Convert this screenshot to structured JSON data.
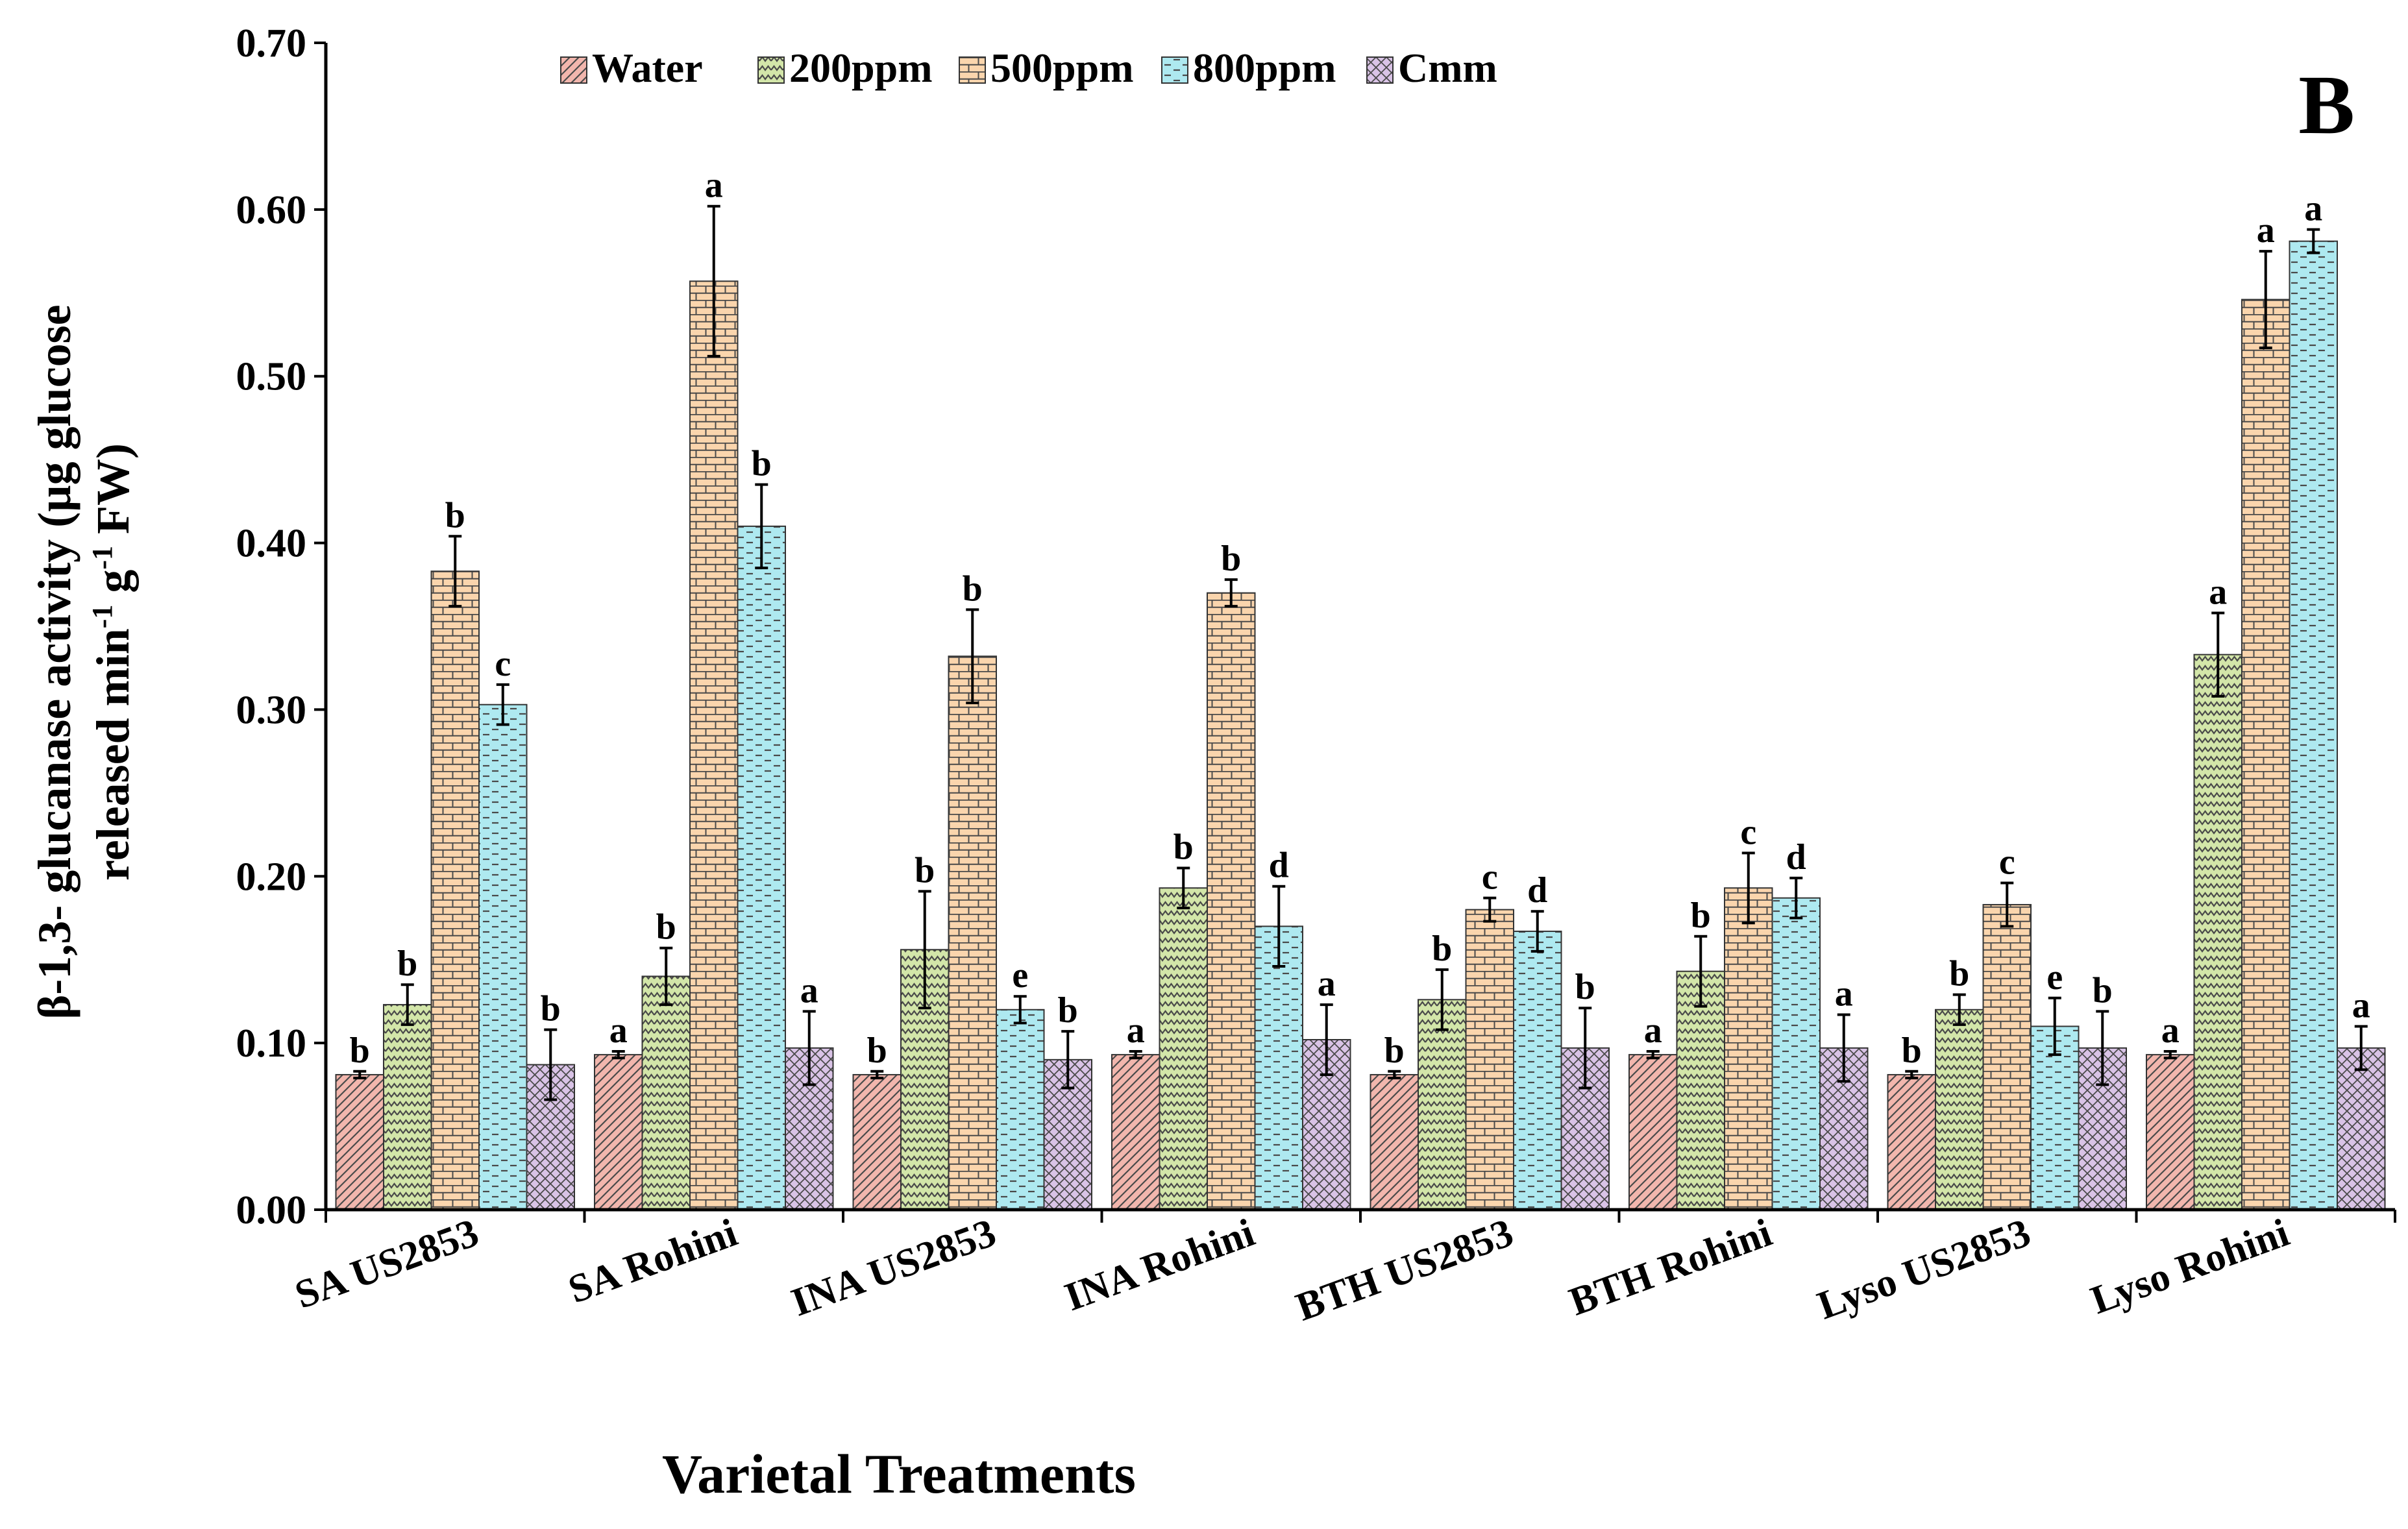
{
  "chart_data": {
    "type": "bar",
    "panel_label": "B",
    "ylabel_line1": "β-1,3- glucanase activity (µg glucose",
    "ylabel_line2_prefix": "released min",
    "ylabel_line2_sup1": "-1",
    "ylabel_line2_mid": " g",
    "ylabel_line2_sup2": "-1",
    "ylabel_line2_suffix": " FW)",
    "xlabel": "Varietal  Treatments",
    "ylim": [
      0,
      0.7
    ],
    "yticks": [
      "0.00",
      "0.10",
      "0.20",
      "0.30",
      "0.40",
      "0.50",
      "0.60",
      "0.70"
    ],
    "grid": false,
    "legend_position": "top",
    "categories": [
      "SA US2853",
      "SA Rohini",
      "INA US2853",
      "INA Rohini",
      "BTH US2853",
      "BTH Rohini",
      "Lyso US2853",
      "Lyso Rohini"
    ],
    "series": [
      {
        "name": "Water",
        "color": "#f2b6ad",
        "pattern": "diagonal",
        "values": [
          0.081,
          0.093,
          0.081,
          0.093,
          0.081,
          0.093,
          0.081,
          0.093
        ],
        "errors": [
          0.002,
          0.002,
          0.002,
          0.002,
          0.002,
          0.002,
          0.002,
          0.002
        ],
        "letters": [
          "b",
          "a",
          "b",
          "a",
          "b",
          "a",
          "b",
          "a"
        ]
      },
      {
        "name": "200ppm",
        "color": "#d3e6a9",
        "pattern": "zigzag",
        "values": [
          0.123,
          0.14,
          0.156,
          0.193,
          0.126,
          0.143,
          0.12,
          0.333
        ],
        "errors": [
          0.012,
          0.017,
          0.035,
          0.012,
          0.018,
          0.021,
          0.009,
          0.025
        ],
        "letters": [
          "b",
          "b",
          "b",
          "b",
          "b",
          "b",
          "b",
          "a"
        ]
      },
      {
        "name": "500ppm",
        "color": "#fad5ad",
        "pattern": "brick",
        "values": [
          0.383,
          0.557,
          0.332,
          0.37,
          0.18,
          0.193,
          0.183,
          0.546
        ],
        "errors": [
          0.021,
          0.045,
          0.028,
          0.008,
          0.007,
          0.021,
          0.013,
          0.029
        ],
        "letters": [
          "b",
          "a",
          "b",
          "b",
          "c",
          "c",
          "c",
          "a"
        ]
      },
      {
        "name": "800ppm",
        "color": "#aee9f0",
        "pattern": "dashed",
        "values": [
          0.303,
          0.41,
          0.12,
          0.17,
          0.167,
          0.187,
          0.11,
          0.581
        ],
        "errors": [
          0.012,
          0.025,
          0.008,
          0.024,
          0.012,
          0.012,
          0.017,
          0.007
        ],
        "letters": [
          "c",
          "b",
          "e",
          "d",
          "d",
          "d",
          "e",
          "a"
        ]
      },
      {
        "name": "Cmm",
        "color": "#d9c3e6",
        "pattern": "crosshatch",
        "values": [
          0.087,
          0.097,
          0.09,
          0.102,
          0.097,
          0.097,
          0.097,
          0.097
        ],
        "errors": [
          0.021,
          0.022,
          0.017,
          0.021,
          0.024,
          0.02,
          0.022,
          0.013
        ],
        "letters": [
          "b",
          "a",
          "b",
          "a",
          "b",
          "a",
          "b",
          "a"
        ]
      }
    ]
  }
}
